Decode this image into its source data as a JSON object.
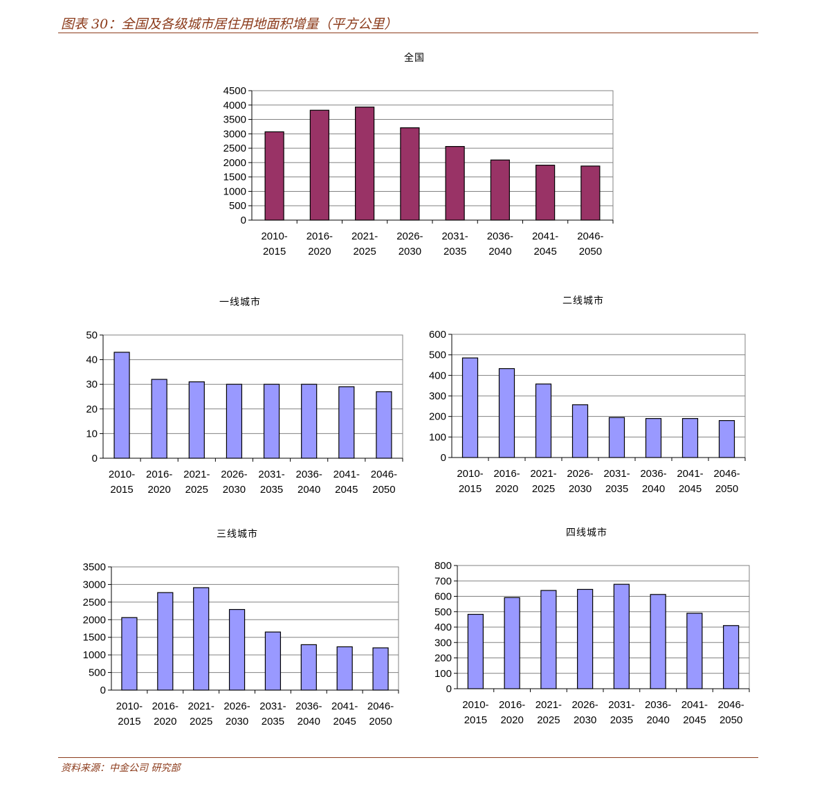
{
  "header": {
    "title": "图表 30：全国及各级城市居住用地面积增量（平方公里）"
  },
  "footer": {
    "source": "资料来源：中金公司 研究部"
  },
  "colors": {
    "accent": "#8B3A1A",
    "national_bar": "#993366",
    "city_bar": "#9999FF"
  },
  "chart_data": [
    {
      "id": "national",
      "type": "bar",
      "title": "全国",
      "categories": [
        "2010-2015",
        "2016-2020",
        "2021-2025",
        "2026-2030",
        "2031-2035",
        "2036-2040",
        "2041-2045",
        "2046-2050"
      ],
      "values": [
        3070,
        3820,
        3930,
        3210,
        2560,
        2090,
        1910,
        1880
      ],
      "ylim": [
        0,
        4500
      ],
      "yticks": [
        0,
        500,
        1000,
        1500,
        2000,
        2500,
        3000,
        3500,
        4000,
        4500
      ],
      "grid": true,
      "bar_color": "#993366"
    },
    {
      "id": "tier1",
      "type": "bar",
      "title": "一线城市",
      "categories": [
        "2010-2015",
        "2016-2020",
        "2021-2025",
        "2026-2030",
        "2031-2035",
        "2036-2040",
        "2041-2045",
        "2046-2050"
      ],
      "values": [
        43,
        32,
        31,
        30,
        30,
        30,
        29,
        27
      ],
      "ylim": [
        0,
        50
      ],
      "yticks": [
        0,
        10,
        20,
        30,
        40,
        50
      ],
      "grid": true,
      "bar_color": "#9999FF"
    },
    {
      "id": "tier2",
      "type": "bar",
      "title": "二线城市",
      "categories": [
        "2010-2015",
        "2016-2020",
        "2021-2025",
        "2026-2030",
        "2031-2035",
        "2036-2040",
        "2041-2045",
        "2046-2050"
      ],
      "values": [
        485,
        433,
        358,
        257,
        195,
        190,
        190,
        180
      ],
      "ylim": [
        0,
        600
      ],
      "yticks": [
        0,
        100,
        200,
        300,
        400,
        500,
        600
      ],
      "grid": true,
      "bar_color": "#9999FF"
    },
    {
      "id": "tier3",
      "type": "bar",
      "title": "三线城市",
      "categories": [
        "2010-2015",
        "2016-2020",
        "2021-2025",
        "2026-2030",
        "2031-2035",
        "2036-2040",
        "2041-2045",
        "2046-2050"
      ],
      "values": [
        2060,
        2770,
        2910,
        2290,
        1650,
        1290,
        1230,
        1200
      ],
      "ylim": [
        0,
        3500
      ],
      "yticks": [
        0,
        500,
        1000,
        1500,
        2000,
        2500,
        3000,
        3500
      ],
      "grid": true,
      "bar_color": "#9999FF"
    },
    {
      "id": "tier4",
      "type": "bar",
      "title": "四线城市",
      "categories": [
        "2010-2015",
        "2016-2020",
        "2021-2025",
        "2026-2030",
        "2031-2035",
        "2036-2040",
        "2041-2045",
        "2046-2050"
      ],
      "values": [
        483,
        592,
        638,
        645,
        678,
        612,
        490,
        410
      ],
      "ylim": [
        0,
        800
      ],
      "yticks": [
        0,
        100,
        200,
        300,
        400,
        500,
        600,
        700,
        800
      ],
      "grid": true,
      "bar_color": "#9999FF"
    }
  ]
}
